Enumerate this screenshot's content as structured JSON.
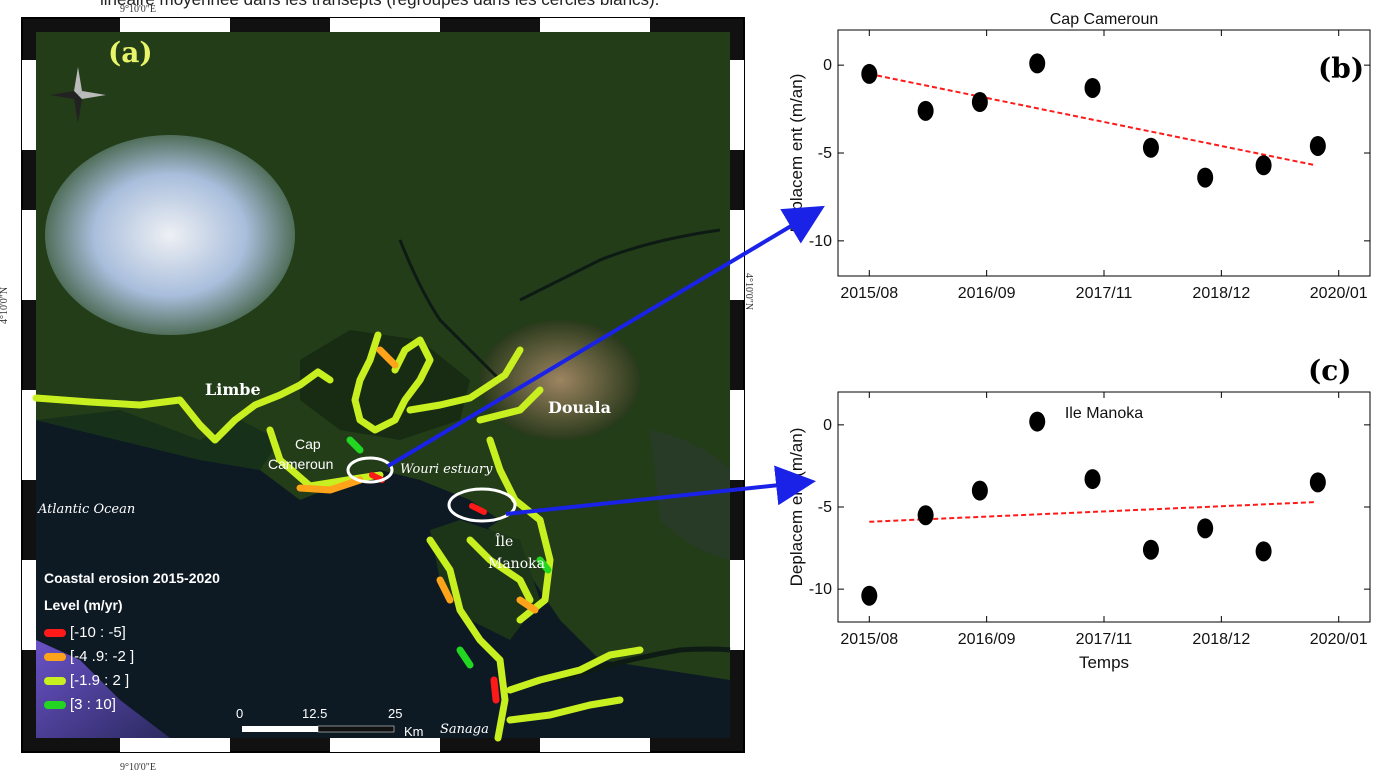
{
  "caption": "linéaire moyennée dans les  transepts (regroupés dans les cercles blancs).",
  "map": {
    "panel_label": "(a)",
    "coord_top": "9°10'0\"E",
    "coord_bottom": "9°10'0\"E",
    "coord_left": "4°10'0\"N",
    "coord_right": "4°10'0\"N",
    "places": {
      "limbe": "Limbe",
      "douala": "Douala",
      "cap_cameroun_1": "Cap",
      "cap_cameroun_2": "Cameroun",
      "wouri": "Wouri estuary",
      "atlantic": "Atlantic Ocean",
      "ile_1": "Île",
      "ile_2": "Manoka",
      "sanaga": "Sanaga"
    },
    "legend": {
      "title": "Coastal erosion 2015-2020",
      "subtitle": "Level (m/yr)",
      "items": [
        {
          "label": "[-10 :  -5]",
          "color": "#ff1a1a"
        },
        {
          "label": "[-4 .9:  -2 ]",
          "color": "#ffa31a"
        },
        {
          "label": "[-1.9 :  2 ]",
          "color": "#c8f020"
        },
        {
          "label": "[3 :  10]",
          "color": "#22d622"
        }
      ]
    },
    "scale_bar": {
      "labels": [
        "0",
        "12.5",
        "25"
      ],
      "unit": "Km"
    },
    "colors": {
      "land": "#1f3a17",
      "water": "#0d1a24",
      "arrow": "#1a22e8"
    }
  },
  "chart_data": [
    {
      "type": "scatter",
      "panel_label": "(b)",
      "title": "Cap Cameroun",
      "xlabel": "",
      "ylabel": "Deplacem ent (m/an)",
      "x_ticks": [
        "2015/08",
        "2016/09",
        "2017/11",
        "2018/12",
        "2020/01"
      ],
      "y_ticks": [
        0,
        -5,
        -10
      ],
      "ylim": [
        -12,
        2
      ],
      "x_range": [
        2015.58,
        2020.08
      ],
      "points": [
        {
          "x": 2015.58,
          "y": -0.5
        },
        {
          "x": 2016.12,
          "y": -2.6
        },
        {
          "x": 2016.64,
          "y": -2.1
        },
        {
          "x": 2017.19,
          "y": 0.1
        },
        {
          "x": 2017.72,
          "y": -1.3
        },
        {
          "x": 2018.28,
          "y": -4.7
        },
        {
          "x": 2018.8,
          "y": -6.4
        },
        {
          "x": 2019.36,
          "y": -5.7
        },
        {
          "x": 2019.88,
          "y": -4.6
        }
      ],
      "trend": {
        "start": [
          2015.58,
          -0.5
        ],
        "end": [
          2019.86,
          -5.7
        ],
        "color": "#ff1a1a"
      }
    },
    {
      "type": "scatter",
      "panel_label": "(c)",
      "title": "Ile Manoka",
      "xlabel": "Temps",
      "ylabel": "Deplacem ent (m/an)",
      "x_ticks": [
        "2015/08",
        "2016/09",
        "2017/11",
        "2018/12",
        "2020/01"
      ],
      "y_ticks": [
        0,
        -5,
        -10
      ],
      "ylim": [
        -12,
        2
      ],
      "x_range": [
        2015.58,
        2020.08
      ],
      "points": [
        {
          "x": 2015.58,
          "y": -10.4
        },
        {
          "x": 2016.12,
          "y": -5.5
        },
        {
          "x": 2016.64,
          "y": -4.0
        },
        {
          "x": 2017.19,
          "y": 0.2
        },
        {
          "x": 2017.72,
          "y": -3.3
        },
        {
          "x": 2018.28,
          "y": -7.6
        },
        {
          "x": 2018.8,
          "y": -6.3
        },
        {
          "x": 2019.36,
          "y": -7.7
        },
        {
          "x": 2019.88,
          "y": -3.5
        }
      ],
      "trend": {
        "start": [
          2015.58,
          -5.9
        ],
        "end": [
          2019.86,
          -4.7
        ],
        "color": "#ff1a1a"
      }
    }
  ]
}
